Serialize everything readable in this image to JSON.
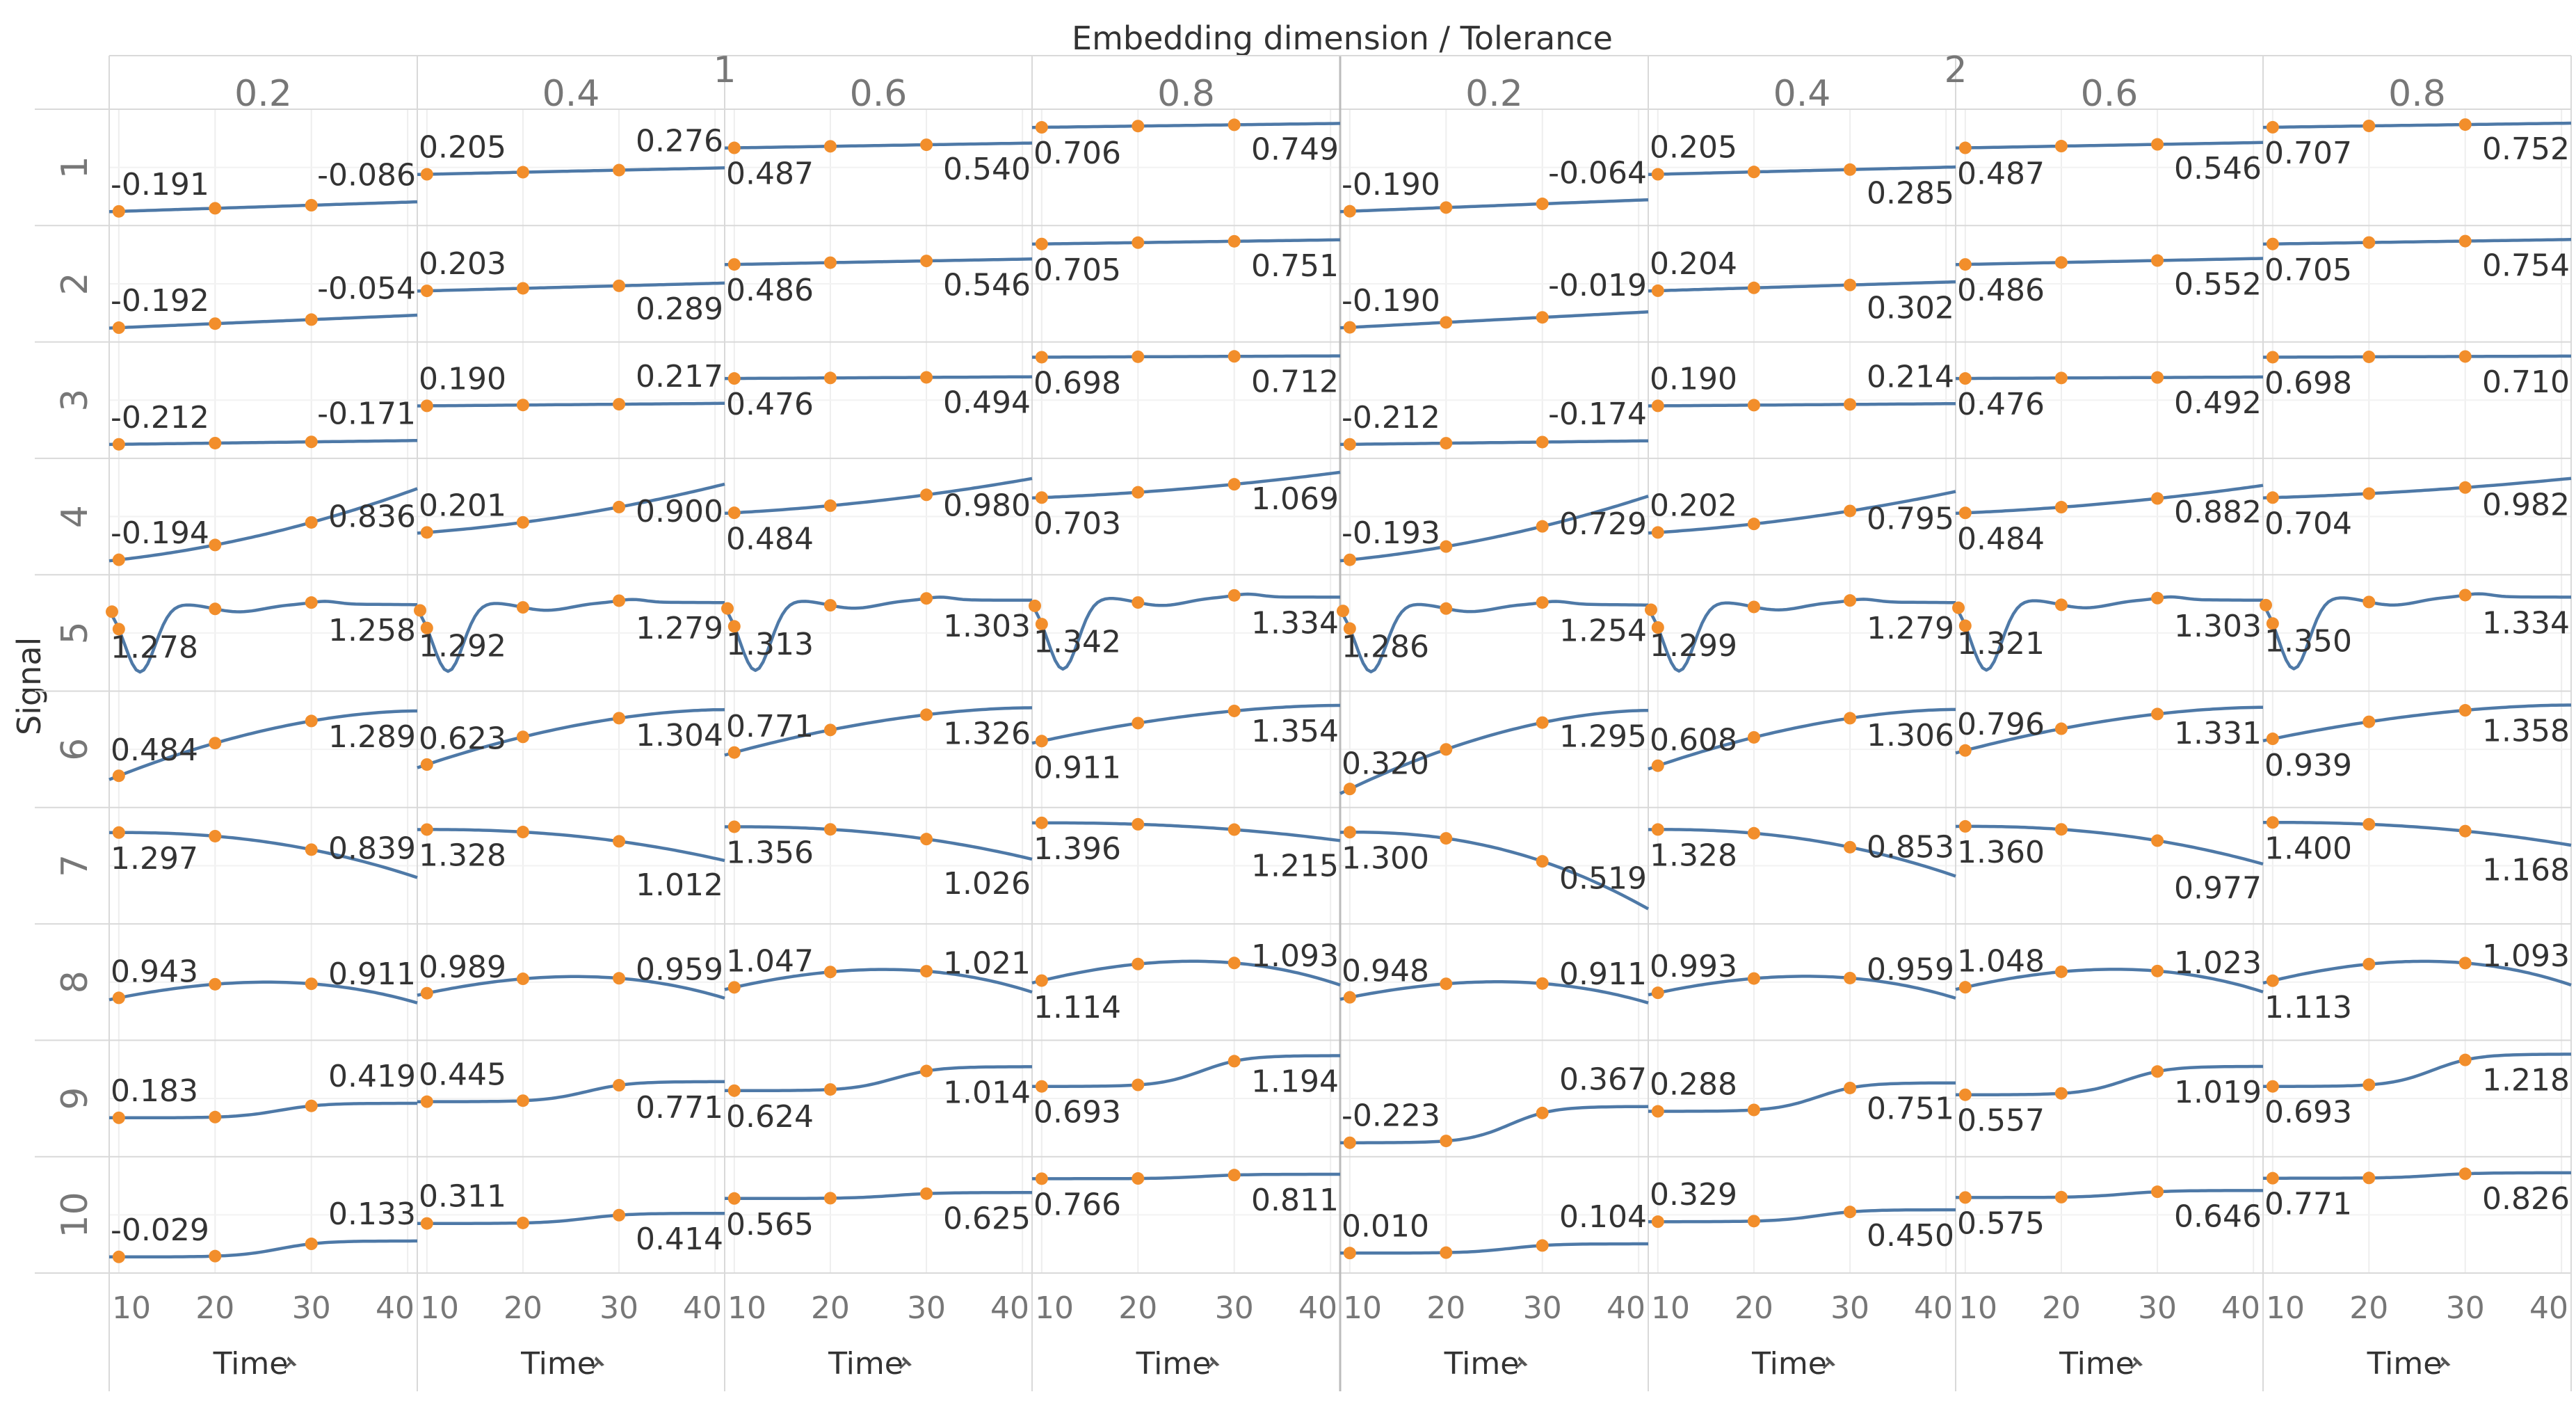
{
  "chart_data": {
    "type": "line",
    "title": "Embedding dimension / Tolerance",
    "ylabel": "Signal",
    "xlabel": "Time",
    "x_axis_icon": "pin-icon",
    "xlim": [
      9,
      41
    ],
    "x_ticks": [
      10,
      20,
      30,
      40
    ],
    "line_color": "#4e79a7",
    "marker_color": "#f28e2b",
    "outer_groups": [
      "1",
      "2"
    ],
    "tolerances": [
      "0.2",
      "0.4",
      "0.6",
      "0.8"
    ],
    "row_labels": [
      "1",
      "2",
      "3",
      "4",
      "5",
      "6",
      "7",
      "8",
      "9",
      "10"
    ],
    "start_labels": [
      [
        "-0.191",
        "0.205",
        "0.487",
        "0.706",
        "-0.190",
        "0.205",
        "0.487",
        "0.707"
      ],
      [
        "-0.192",
        "0.203",
        "0.486",
        "0.705",
        "-0.190",
        "0.204",
        "0.486",
        "0.705"
      ],
      [
        "-0.212",
        "0.190",
        "0.476",
        "0.698",
        "-0.212",
        "0.190",
        "0.476",
        "0.698"
      ],
      [
        "-0.194",
        "0.201",
        "0.484",
        "0.703",
        "-0.193",
        "0.202",
        "0.484",
        "0.704"
      ],
      [
        "1.278",
        "1.292",
        "1.313",
        "1.342",
        "1.286",
        "1.299",
        "1.321",
        "1.350"
      ],
      [
        "0.484",
        "0.623",
        "0.771",
        "0.911",
        "0.320",
        "0.608",
        "0.796",
        "0.939"
      ],
      [
        "1.297",
        "1.328",
        "1.356",
        "1.396",
        "1.300",
        "1.328",
        "1.360",
        "1.400"
      ],
      [
        "0.943",
        "0.989",
        "1.047",
        "1.114",
        "0.948",
        "0.993",
        "1.048",
        "1.113"
      ],
      [
        "0.183",
        "0.445",
        "0.624",
        "0.693",
        "-0.223",
        "0.288",
        "0.557",
        "0.693"
      ],
      [
        "-0.029",
        "0.311",
        "0.565",
        "0.766",
        "0.010",
        "0.329",
        "0.575",
        "0.771"
      ]
    ],
    "end_labels": [
      [
        "-0.086",
        "0.276",
        "0.540",
        "0.749",
        "-0.064",
        "0.285",
        "0.546",
        "0.752"
      ],
      [
        "-0.054",
        "0.289",
        "0.546",
        "0.751",
        "-0.019",
        "0.302",
        "0.552",
        "0.754"
      ],
      [
        "-0.171",
        "0.217",
        "0.494",
        "0.712",
        "-0.174",
        "0.214",
        "0.492",
        "0.710"
      ],
      [
        "0.836",
        "0.900",
        "0.980",
        "1.069",
        "0.729",
        "0.795",
        "0.882",
        "0.982"
      ],
      [
        "1.258",
        "1.279",
        "1.303",
        "1.334",
        "1.254",
        "1.279",
        "1.303",
        "1.334"
      ],
      [
        "1.289",
        "1.304",
        "1.326",
        "1.354",
        "1.295",
        "1.306",
        "1.331",
        "1.358"
      ],
      [
        "0.839",
        "1.012",
        "1.026",
        "1.215",
        "0.519",
        "0.853",
        "0.977",
        "1.168"
      ],
      [
        "0.911",
        "0.959",
        "1.021",
        "1.093",
        "0.911",
        "0.959",
        "1.023",
        "1.093"
      ],
      [
        "0.419",
        "0.771",
        "1.014",
        "1.194",
        "0.367",
        "0.751",
        "1.019",
        "1.218"
      ],
      [
        "0.133",
        "0.414",
        "0.625",
        "0.811",
        "0.104",
        "0.450",
        "0.646",
        "0.826"
      ]
    ],
    "marker_times": [
      10,
      20,
      30
    ],
    "series_note": "one series per cell: Signal (row) x Embedding dimension/Tolerance (column); values read from start/end data labels, intermediate values estimated",
    "row_shapes": [
      "linear",
      "linear",
      "linear",
      "convex",
      "dip",
      "concave",
      "drop",
      "arch",
      "step",
      "step"
    ]
  }
}
